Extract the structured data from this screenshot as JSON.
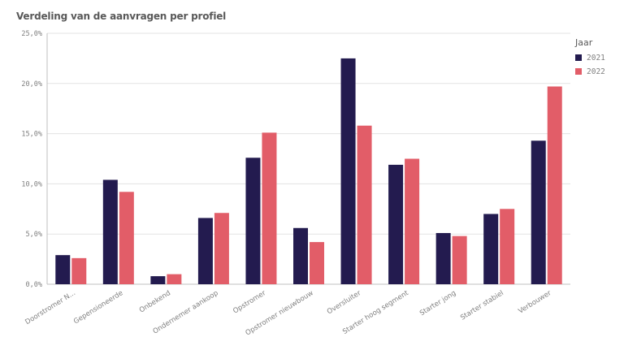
{
  "chart_data": {
    "type": "bar",
    "title": "Verdeling van de aanvragen per profiel",
    "xlabel": "",
    "ylabel": "",
    "ylim": [
      0,
      25
    ],
    "yticks": [
      "0,0%",
      "5,0%",
      "10,0%",
      "15,0%",
      "20,0%",
      "25,0%"
    ],
    "grid": true,
    "legend_position": "top-right",
    "legend_title": "Jaar",
    "categories": [
      "Doorstromer N...",
      "Gepensioneerde",
      "Onbekend",
      "Ondernemer aankoop",
      "Opstromer",
      "Opstromer nieuwbouw",
      "Oversluiter",
      "Starter hoog segment",
      "Starter jong",
      "Starter stabiel",
      "Verbouwer"
    ],
    "series": [
      {
        "name": "2021",
        "color": "#231b4f",
        "values": [
          2.9,
          10.4,
          0.8,
          6.6,
          12.6,
          5.6,
          22.5,
          11.9,
          5.1,
          7.0,
          14.3
        ]
      },
      {
        "name": "2022",
        "color": "#e25d68",
        "values": [
          2.6,
          9.2,
          1.0,
          7.1,
          15.1,
          4.2,
          15.8,
          12.5,
          4.8,
          7.5,
          19.7
        ]
      }
    ]
  }
}
